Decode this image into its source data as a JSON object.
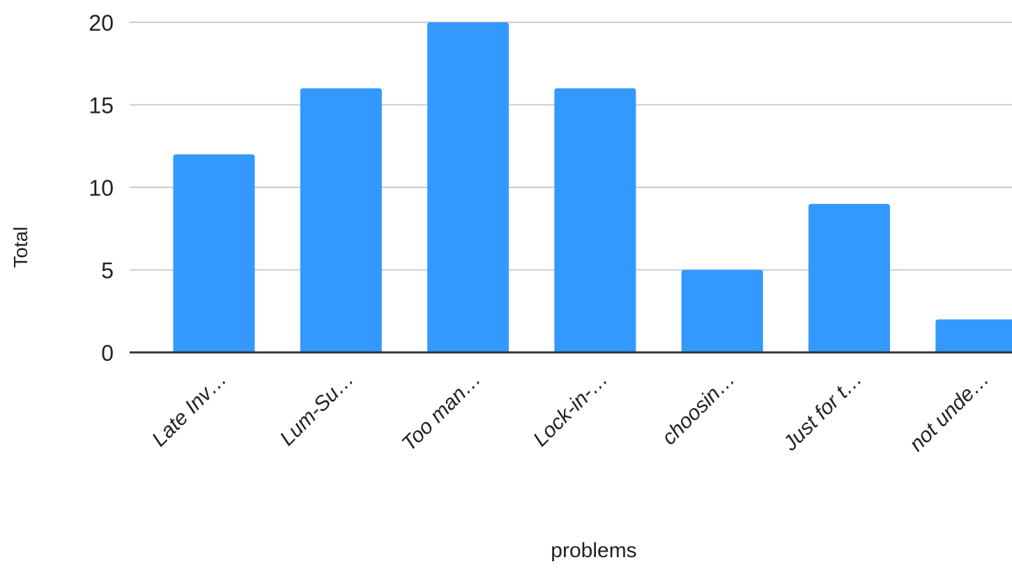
{
  "chart_data": {
    "type": "bar",
    "title": "",
    "xlabel": "problems",
    "ylabel": "Total",
    "ylim": [
      0,
      20
    ],
    "yticks": [
      0,
      5,
      10,
      15,
      20
    ],
    "grid": true,
    "legend": "none",
    "bar_color": "#3399ff",
    "categories": [
      "Late Inv…",
      "Lum-Su…",
      "Too man…",
      "Lock-in-…",
      "choosin…",
      "Just for t…",
      "not unde…"
    ],
    "values": [
      12,
      16,
      20,
      16,
      5,
      9,
      2
    ]
  }
}
